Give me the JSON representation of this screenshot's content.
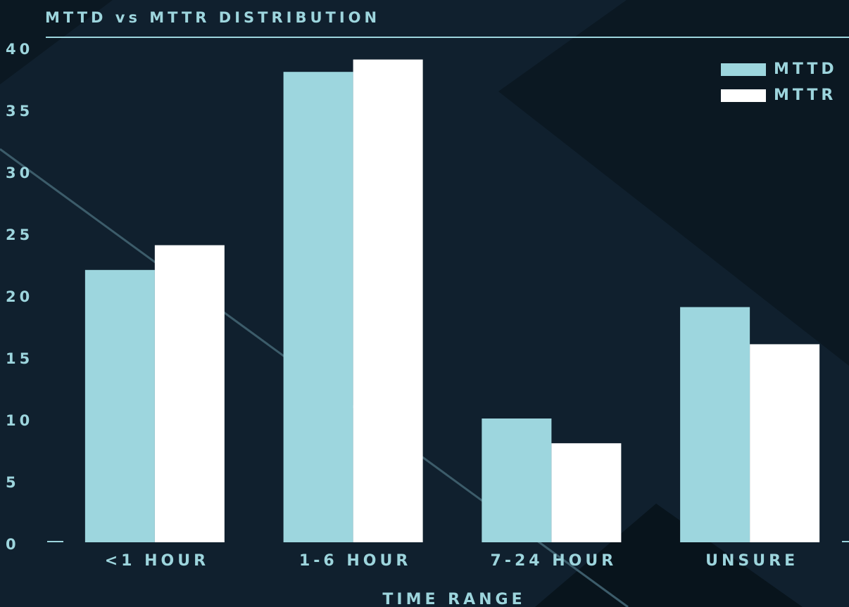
{
  "chart_data": {
    "type": "bar",
    "title": "MTTD vs MTTR DISTRIBUTION",
    "x_label": "TIME RANGE",
    "categories": [
      "<1 HOUR",
      "1-6 HOUR",
      "7-24 HOUR",
      "UNSURE"
    ],
    "series": [
      {
        "name": "MTTD",
        "color": "#9dd6de",
        "values": [
          22,
          38,
          10,
          19
        ]
      },
      {
        "name": "MTTR",
        "color": "#ffffff",
        "values": [
          24,
          39,
          8,
          16
        ]
      }
    ],
    "ylim": [
      0,
      40
    ],
    "yticks": [
      0,
      5,
      10,
      15,
      20,
      25,
      30,
      35,
      40
    ],
    "grid": false,
    "legend": "top-right"
  }
}
